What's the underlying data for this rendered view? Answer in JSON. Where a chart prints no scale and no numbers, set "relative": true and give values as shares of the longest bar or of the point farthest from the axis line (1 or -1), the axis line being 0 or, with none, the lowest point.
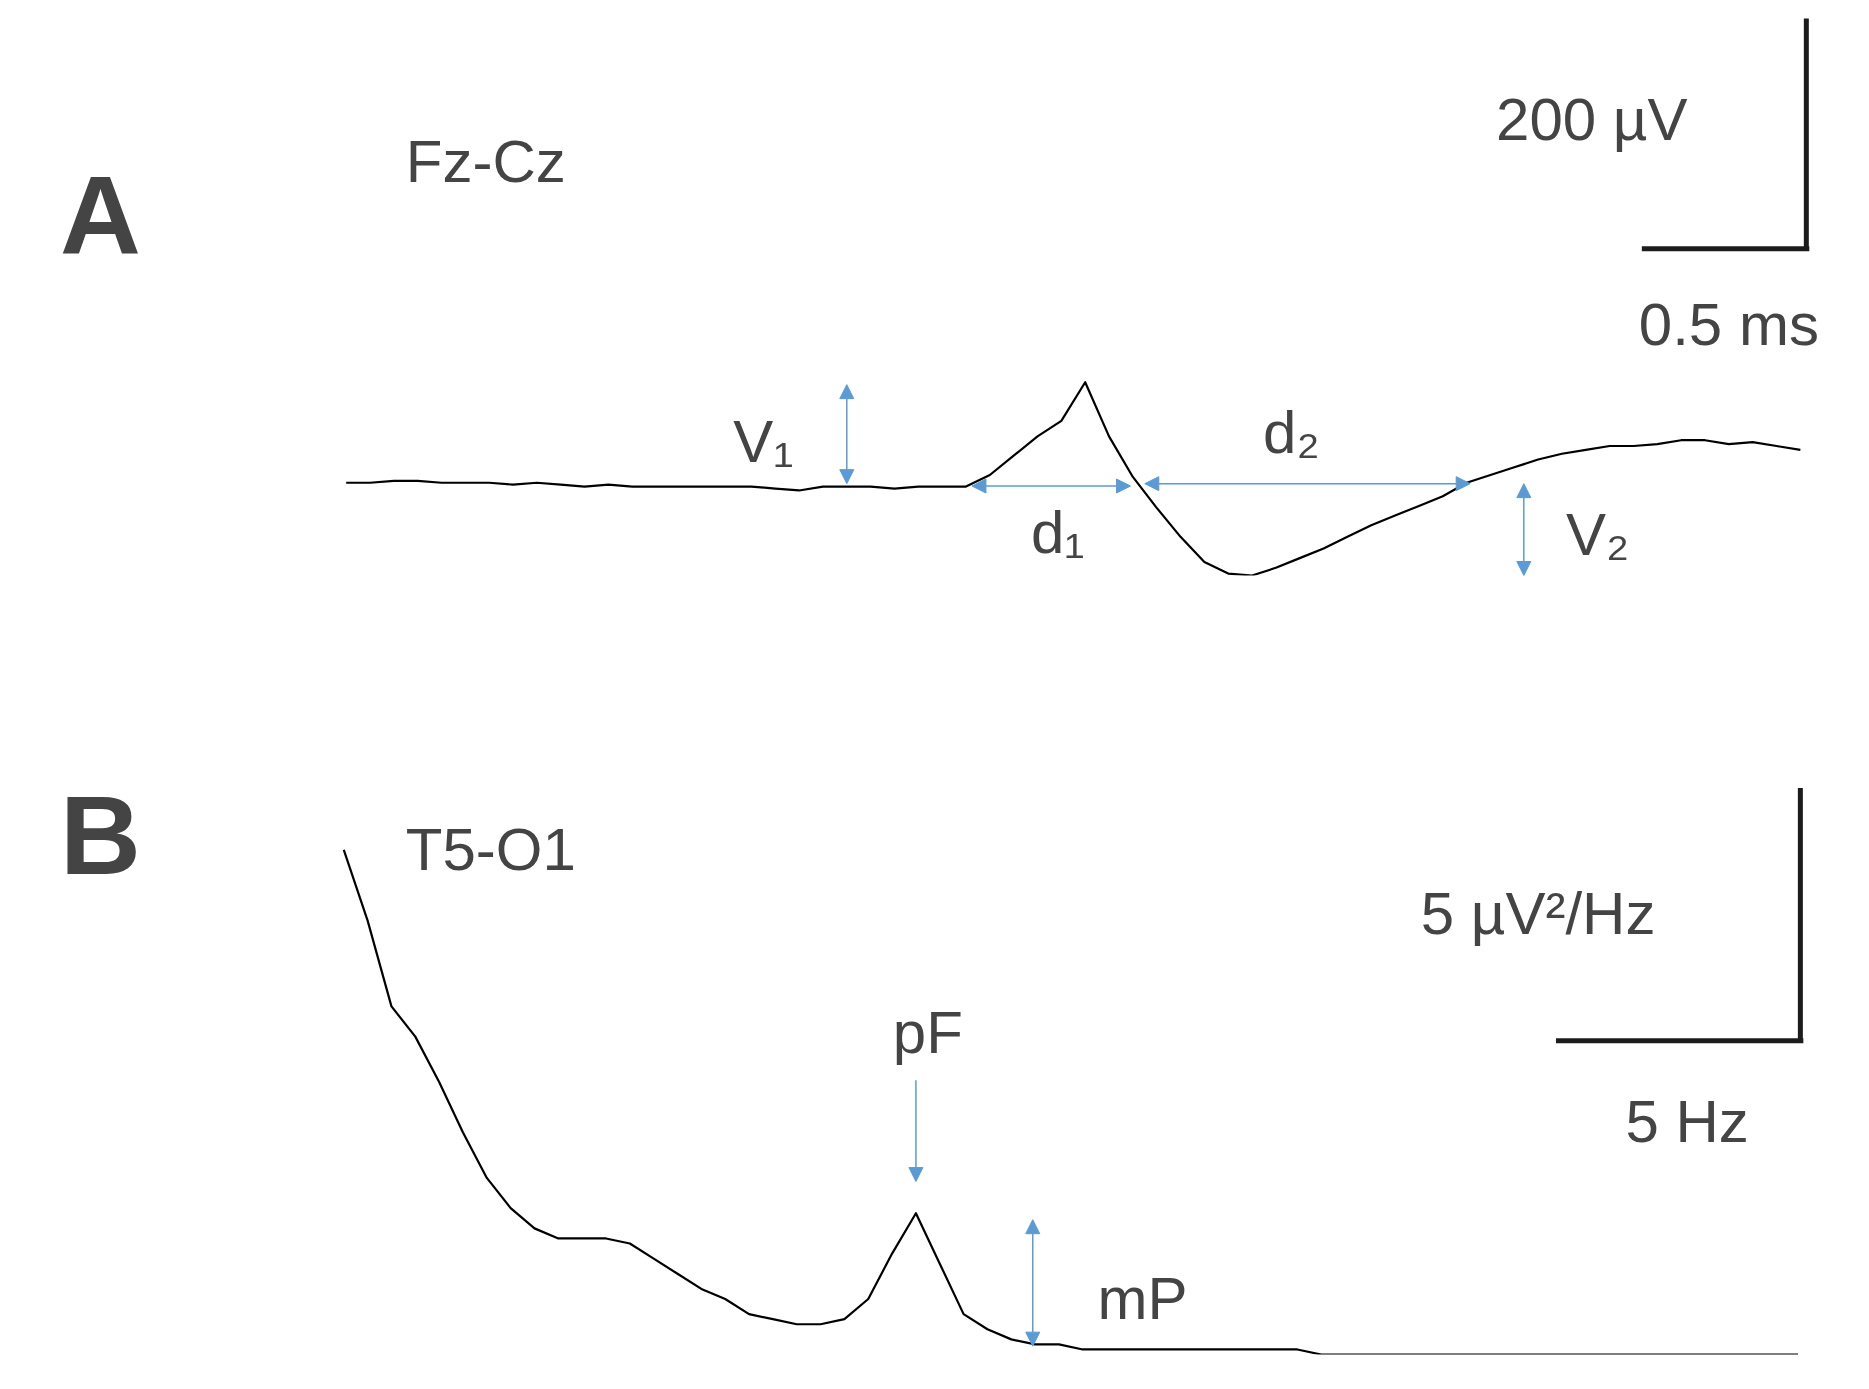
{
  "chart_data": [
    {
      "type": "line",
      "title": "A",
      "subtitle": "Fz-Cz",
      "relative": true,
      "color": "#000000",
      "categories": [
        null,
        null,
        null,
        null,
        null,
        null,
        null,
        null,
        null,
        null,
        null,
        null,
        null,
        null,
        null,
        null,
        null,
        null,
        null,
        null,
        null,
        null,
        null,
        null,
        null,
        null,
        null,
        null,
        null,
        null,
        null,
        null,
        null,
        null,
        null,
        null,
        null,
        null,
        null,
        null,
        null,
        null,
        null,
        null,
        null,
        null,
        null,
        null,
        null,
        null,
        null,
        null,
        null,
        null,
        null,
        null,
        null,
        null,
        null,
        null,
        null,
        null
      ],
      "values": [
        0.48,
        0.48,
        0.49,
        0.49,
        0.48,
        0.48,
        0.48,
        0.47,
        0.48,
        0.47,
        0.46,
        0.47,
        0.46,
        0.46,
        0.46,
        0.46,
        0.46,
        0.46,
        0.45,
        0.44,
        0.46,
        0.46,
        0.46,
        0.45,
        0.46,
        0.46,
        0.46,
        0.52,
        0.62,
        0.72,
        0.8,
        1.0,
        0.72,
        0.51,
        0.35,
        0.2,
        0.07,
        0.01,
        0.0,
        0.04,
        0.09,
        0.14,
        0.2,
        0.26,
        0.31,
        0.36,
        0.41,
        0.48,
        0.52,
        0.56,
        0.6,
        0.63,
        0.65,
        0.67,
        0.67,
        0.68,
        0.7,
        0.7,
        0.68,
        0.69,
        0.67,
        0.65
      ],
      "annotations": [
        "200 µV",
        "0.5 ms",
        "V₁",
        "d₁",
        "d₂",
        "V₂"
      ]
    },
    {
      "type": "line",
      "title": "B",
      "subtitle": "T5-O1",
      "relative": true,
      "color": "#000000",
      "categories": [
        null,
        null,
        null,
        null,
        null,
        null,
        null,
        null,
        null,
        null,
        null,
        null,
        null,
        null,
        null,
        null,
        null,
        null,
        null,
        null,
        null,
        null,
        null,
        null,
        null,
        null,
        null,
        null,
        null,
        null,
        null,
        null,
        null,
        null,
        null,
        null,
        null,
        null,
        null,
        null,
        null,
        null,
        null,
        null,
        null,
        null,
        null,
        null,
        null,
        null,
        null,
        null,
        null,
        null,
        null,
        null,
        null,
        null,
        null,
        null,
        null,
        null
      ],
      "values": [
        1.0,
        0.86,
        0.69,
        0.63,
        0.54,
        0.44,
        0.35,
        0.29,
        0.25,
        0.23,
        0.23,
        0.23,
        0.22,
        0.19,
        0.16,
        0.13,
        0.11,
        0.08,
        0.07,
        0.06,
        0.06,
        0.07,
        0.11,
        0.2,
        0.28,
        0.18,
        0.08,
        0.05,
        0.03,
        0.02,
        0.02,
        0.01,
        0.01,
        0.01,
        0.01,
        0.01,
        0.01,
        0.01,
        0.01,
        0.01,
        0.01,
        0.0,
        0.0,
        0.0,
        0.0,
        0.0,
        0.0,
        0.0,
        0.0,
        0.0,
        0.0,
        0.0,
        0.0,
        0.0,
        0.0,
        0.0,
        0.0,
        0.0,
        0.0,
        0.0,
        0.0,
        0.0
      ],
      "annotations": [
        "5 µV²/Hz",
        "5 Hz",
        "pF",
        "mP"
      ]
    }
  ]
}
